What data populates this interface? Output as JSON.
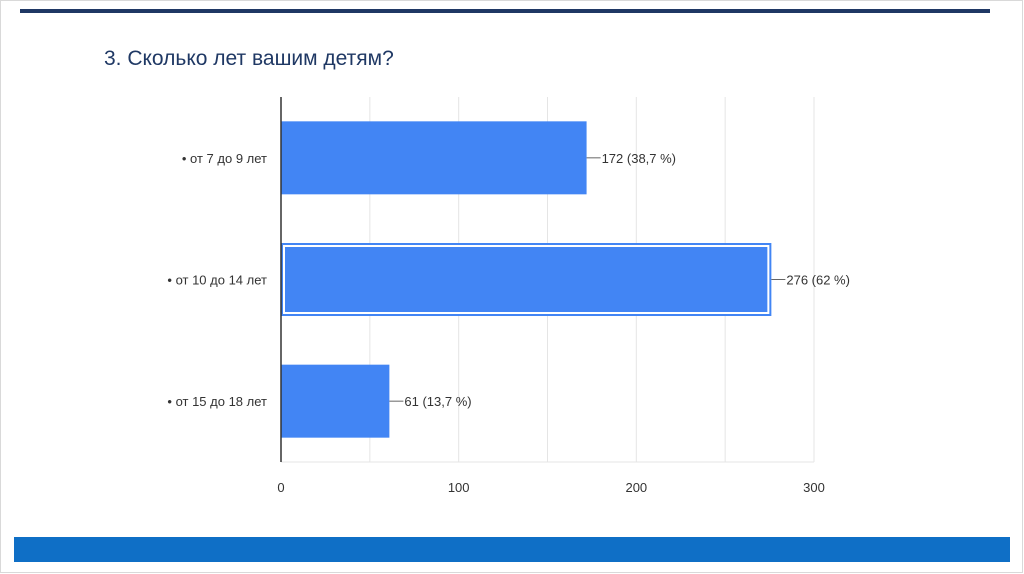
{
  "slide": {
    "title": "3. Сколько лет вашим детям?"
  },
  "colors": {
    "bar": "#4285f4",
    "top_bar": "#1f3864",
    "bottom_bar": "#0f6fc6",
    "title": "#1f3864"
  },
  "chart_data": {
    "type": "bar",
    "orientation": "horizontal",
    "categories": [
      "• от 7 до 9 лет",
      "• от 10 до 14 лет",
      "• от 15 до 18 лет"
    ],
    "values": [
      172,
      276,
      61
    ],
    "data_labels": [
      "172 (38,7 %)",
      "276 (62 %)",
      "61 (13,7 %)"
    ],
    "highlighted_index": 1,
    "xlim": [
      0,
      300
    ],
    "x_ticks": [
      0,
      100,
      200,
      300
    ],
    "grid": true,
    "title": "",
    "xlabel": "",
    "ylabel": ""
  }
}
